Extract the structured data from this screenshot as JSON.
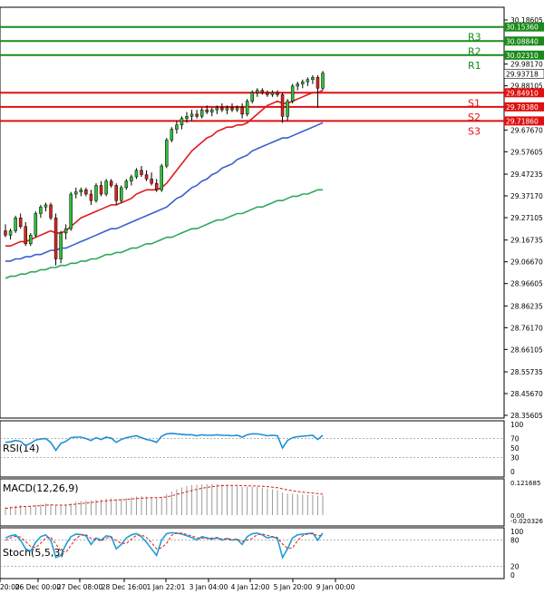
{
  "chart_data": {
    "type": "candlestick",
    "instrument_hint": "Silver-like price chart with support/resistance and indicators",
    "price_axis": {
      "min": 28.356,
      "max": 30.186,
      "ticks": [
        "30.18605",
        "29.98170",
        "29.88105",
        "29.67670",
        "29.57605",
        "29.47235",
        "29.37170",
        "29.27105",
        "29.16735",
        "29.06670",
        "28.96605",
        "28.86235",
        "28.76170",
        "28.66105",
        "28.55735",
        "28.45670",
        "28.35605"
      ]
    },
    "levels": [
      {
        "name": "R3",
        "value": 30.1536,
        "label": "30.15360",
        "color": "#1a8a1a"
      },
      {
        "name": "",
        "value": 30.0884,
        "label": "30.08840",
        "color": "#1a8a1a"
      },
      {
        "name": "R2",
        "value": 30.0884,
        "label": "",
        "color": "#1a8a1a"
      },
      {
        "name": "R1",
        "value": 30.0231,
        "label": "30.02310",
        "color": "#1a8a1a"
      },
      {
        "name": "S1",
        "value": 29.8491,
        "label": "29.84910",
        "color": "#e01010"
      },
      {
        "name": "S2",
        "value": 29.7838,
        "label": "29.78380",
        "color": "#e01010"
      },
      {
        "name": "S3",
        "value": 29.7186,
        "label": "29.71860",
        "color": "#e01010"
      }
    ],
    "current_price": {
      "value": 29.93718,
      "label": "29.93718"
    },
    "time_labels": [
      "20:00",
      "26 Dec 00:00",
      "27 Dec 08:00",
      "28 Dec 16:00",
      "1 Jan 22:01",
      "3 Jan 04:00",
      "4 Jan 12:00",
      "5 Jan 20:00",
      "9 Jan 00:00"
    ],
    "candles": [
      [
        29.21,
        29.24,
        29.18,
        29.19
      ],
      [
        29.19,
        29.22,
        29.17,
        29.21
      ],
      [
        29.21,
        29.28,
        29.2,
        29.27
      ],
      [
        29.27,
        29.29,
        29.22,
        29.23
      ],
      [
        29.23,
        29.25,
        29.14,
        29.15
      ],
      [
        29.15,
        29.2,
        29.14,
        29.19
      ],
      [
        29.19,
        29.3,
        29.18,
        29.29
      ],
      [
        29.29,
        29.33,
        29.27,
        29.32
      ],
      [
        29.32,
        29.34,
        29.3,
        29.33
      ],
      [
        29.33,
        29.34,
        29.26,
        29.27
      ],
      [
        29.27,
        29.29,
        29.05,
        29.08
      ],
      [
        29.08,
        29.21,
        29.06,
        29.2
      ],
      [
        29.2,
        29.24,
        29.17,
        29.22
      ],
      [
        29.22,
        29.39,
        29.21,
        29.38
      ],
      [
        29.38,
        29.41,
        29.36,
        29.39
      ],
      [
        29.39,
        29.41,
        29.37,
        29.4
      ],
      [
        29.4,
        29.41,
        29.37,
        29.38
      ],
      [
        29.38,
        29.4,
        29.33,
        29.35
      ],
      [
        29.35,
        29.43,
        29.34,
        29.42
      ],
      [
        29.42,
        29.44,
        29.37,
        29.38
      ],
      [
        29.38,
        29.45,
        29.37,
        29.44
      ],
      [
        29.44,
        29.45,
        29.41,
        29.42
      ],
      [
        29.42,
        29.43,
        29.33,
        29.35
      ],
      [
        29.35,
        29.42,
        29.34,
        29.41
      ],
      [
        29.41,
        29.45,
        29.4,
        29.44
      ],
      [
        29.44,
        29.47,
        29.42,
        29.46
      ],
      [
        29.46,
        29.5,
        29.45,
        29.49
      ],
      [
        29.49,
        29.51,
        29.46,
        29.47
      ],
      [
        29.47,
        29.49,
        29.44,
        29.45
      ],
      [
        29.45,
        29.48,
        29.42,
        29.43
      ],
      [
        29.43,
        29.45,
        29.39,
        29.4
      ],
      [
        29.4,
        29.52,
        29.39,
        29.51
      ],
      [
        29.51,
        29.64,
        29.5,
        29.63
      ],
      [
        29.63,
        29.69,
        29.62,
        29.68
      ],
      [
        29.68,
        29.72,
        29.66,
        29.7
      ],
      [
        29.7,
        29.74,
        29.68,
        29.73
      ],
      [
        29.73,
        29.76,
        29.71,
        29.74
      ],
      [
        29.74,
        29.77,
        29.72,
        29.75
      ],
      [
        29.75,
        29.77,
        29.73,
        29.74
      ],
      [
        29.74,
        29.78,
        29.73,
        29.77
      ],
      [
        29.77,
        29.79,
        29.75,
        29.76
      ],
      [
        29.76,
        29.78,
        29.74,
        29.77
      ],
      [
        29.77,
        29.79,
        29.75,
        29.78
      ],
      [
        29.78,
        29.8,
        29.76,
        29.77
      ],
      [
        29.77,
        29.79,
        29.75,
        29.78
      ],
      [
        29.78,
        29.8,
        29.76,
        29.77
      ],
      [
        29.77,
        29.79,
        29.76,
        29.78
      ],
      [
        29.78,
        29.8,
        29.73,
        29.75
      ],
      [
        29.75,
        29.82,
        29.74,
        29.81
      ],
      [
        29.81,
        29.86,
        29.8,
        29.85
      ],
      [
        29.85,
        29.87,
        29.83,
        29.86
      ],
      [
        29.86,
        29.87,
        29.84,
        29.85
      ],
      [
        29.85,
        29.86,
        29.83,
        29.84
      ],
      [
        29.84,
        29.86,
        29.83,
        29.85
      ],
      [
        29.85,
        29.86,
        29.83,
        29.84
      ],
      [
        29.84,
        29.85,
        29.71,
        29.74
      ],
      [
        29.74,
        29.82,
        29.72,
        29.81
      ],
      [
        29.81,
        29.89,
        29.8,
        29.88
      ],
      [
        29.88,
        29.9,
        29.86,
        29.89
      ],
      [
        29.89,
        29.91,
        29.87,
        29.9
      ],
      [
        29.9,
        29.92,
        29.88,
        29.91
      ],
      [
        29.91,
        29.93,
        29.89,
        29.92
      ],
      [
        29.92,
        29.93,
        29.78,
        29.87
      ],
      [
        29.87,
        29.95,
        29.86,
        29.94
      ]
    ],
    "ma_red": [
      29.14,
      29.14,
      29.15,
      29.16,
      29.16,
      29.17,
      29.18,
      29.19,
      29.2,
      29.21,
      29.2,
      29.2,
      29.21,
      29.23,
      29.25,
      29.27,
      29.28,
      29.29,
      29.3,
      29.31,
      29.32,
      29.33,
      29.33,
      29.34,
      29.35,
      29.36,
      29.38,
      29.39,
      29.4,
      29.4,
      29.4,
      29.41,
      29.43,
      29.46,
      29.49,
      29.52,
      29.55,
      29.58,
      29.6,
      29.62,
      29.64,
      29.65,
      29.67,
      29.68,
      29.69,
      29.69,
      29.7,
      29.7,
      29.71,
      29.73,
      29.75,
      29.77,
      29.79,
      29.8,
      29.81,
      29.8,
      29.8,
      29.81,
      29.82,
      29.83,
      29.84,
      29.85,
      29.85,
      29.86
    ],
    "ma_blue": [
      29.07,
      29.07,
      29.08,
      29.08,
      29.09,
      29.09,
      29.1,
      29.1,
      29.11,
      29.12,
      29.12,
      29.13,
      29.13,
      29.14,
      29.15,
      29.16,
      29.17,
      29.18,
      29.19,
      29.2,
      29.21,
      29.22,
      29.22,
      29.23,
      29.24,
      29.25,
      29.26,
      29.27,
      29.28,
      29.29,
      29.3,
      29.31,
      29.32,
      29.34,
      29.36,
      29.37,
      29.39,
      29.41,
      29.42,
      29.44,
      29.45,
      29.47,
      29.48,
      29.5,
      29.51,
      29.52,
      29.54,
      29.55,
      29.56,
      29.58,
      29.59,
      29.6,
      29.61,
      29.62,
      29.63,
      29.64,
      29.64,
      29.65,
      29.66,
      29.67,
      29.68,
      29.69,
      29.7,
      29.71
    ],
    "ma_green": [
      28.99,
      29.0,
      29.0,
      29.01,
      29.01,
      29.02,
      29.02,
      29.03,
      29.03,
      29.04,
      29.04,
      29.05,
      29.05,
      29.06,
      29.06,
      29.07,
      29.07,
      29.08,
      29.08,
      29.09,
      29.1,
      29.1,
      29.11,
      29.11,
      29.12,
      29.13,
      29.13,
      29.14,
      29.15,
      29.15,
      29.16,
      29.17,
      29.18,
      29.18,
      29.19,
      29.2,
      29.21,
      29.22,
      29.22,
      29.23,
      29.24,
      29.25,
      29.26,
      29.26,
      29.27,
      29.28,
      29.29,
      29.29,
      29.3,
      29.31,
      29.32,
      29.32,
      29.33,
      29.34,
      29.35,
      29.35,
      29.36,
      29.37,
      29.37,
      29.38,
      29.38,
      29.39,
      29.4,
      29.4
    ],
    "rsi": {
      "title": "RSI(14)",
      "ticks": [
        "100",
        "70",
        "50",
        "30",
        "0"
      ],
      "levels": [
        70,
        30
      ],
      "values": [
        62,
        63,
        66,
        64,
        55,
        60,
        67,
        69,
        70,
        62,
        45,
        60,
        64,
        72,
        73,
        73,
        70,
        66,
        72,
        68,
        73,
        71,
        62,
        68,
        72,
        74,
        76,
        72,
        68,
        66,
        62,
        75,
        80,
        81,
        80,
        79,
        78,
        78,
        76,
        78,
        77,
        77,
        78,
        77,
        77,
        76,
        77,
        73,
        78,
        80,
        80,
        78,
        76,
        77,
        76,
        50,
        66,
        72,
        74,
        75,
        76,
        77,
        68,
        77
      ]
    },
    "macd": {
      "title": "MACD(12,26,9)",
      "ticks": [
        "0.121685",
        "0.00",
        "-0.020326"
      ],
      "histogram": [
        0.03,
        0.032,
        0.035,
        0.036,
        0.034,
        0.034,
        0.037,
        0.04,
        0.043,
        0.042,
        0.035,
        0.036,
        0.038,
        0.044,
        0.049,
        0.052,
        0.054,
        0.054,
        0.057,
        0.058,
        0.061,
        0.062,
        0.06,
        0.061,
        0.063,
        0.066,
        0.069,
        0.07,
        0.069,
        0.067,
        0.064,
        0.069,
        0.078,
        0.088,
        0.096,
        0.103,
        0.108,
        0.112,
        0.113,
        0.115,
        0.116,
        0.116,
        0.116,
        0.115,
        0.113,
        0.111,
        0.109,
        0.105,
        0.105,
        0.106,
        0.105,
        0.102,
        0.099,
        0.096,
        0.093,
        0.084,
        0.08,
        0.079,
        0.078,
        0.077,
        0.076,
        0.075,
        0.072,
        0.073
      ],
      "signal": [
        0.025,
        0.027,
        0.029,
        0.031,
        0.032,
        0.033,
        0.034,
        0.035,
        0.037,
        0.038,
        0.037,
        0.037,
        0.037,
        0.039,
        0.041,
        0.043,
        0.045,
        0.047,
        0.049,
        0.051,
        0.053,
        0.055,
        0.056,
        0.057,
        0.058,
        0.06,
        0.062,
        0.063,
        0.064,
        0.065,
        0.065,
        0.066,
        0.068,
        0.072,
        0.077,
        0.082,
        0.087,
        0.092,
        0.096,
        0.1,
        0.103,
        0.106,
        0.108,
        0.11,
        0.111,
        0.111,
        0.111,
        0.11,
        0.109,
        0.109,
        0.108,
        0.107,
        0.106,
        0.104,
        0.102,
        0.098,
        0.094,
        0.091,
        0.088,
        0.086,
        0.084,
        0.082,
        0.08,
        0.078
      ]
    },
    "stoch": {
      "title": "Stoch(5,5,3)",
      "ticks": [
        "100",
        "80",
        "20",
        "0"
      ],
      "levels": [
        80,
        20
      ],
      "k": [
        85,
        90,
        92,
        80,
        60,
        55,
        75,
        88,
        92,
        80,
        40,
        45,
        70,
        88,
        94,
        93,
        90,
        70,
        85,
        80,
        90,
        88,
        60,
        70,
        85,
        92,
        95,
        88,
        75,
        60,
        45,
        80,
        95,
        97,
        96,
        94,
        90,
        86,
        80,
        88,
        85,
        82,
        86,
        80,
        84,
        80,
        82,
        70,
        88,
        95,
        96,
        92,
        85,
        88,
        84,
        40,
        60,
        85,
        92,
        94,
        95,
        96,
        80,
        96
      ],
      "d": [
        80,
        85,
        89,
        87,
        77,
        65,
        63,
        73,
        85,
        87,
        71,
        55,
        52,
        68,
        84,
        92,
        92,
        84,
        82,
        78,
        85,
        86,
        79,
        73,
        72,
        82,
        91,
        92,
        86,
        74,
        60,
        62,
        73,
        91,
        96,
        96,
        93,
        90,
        85,
        85,
        84,
        85,
        84,
        83,
        83,
        81,
        82,
        77,
        80,
        84,
        93,
        94,
        91,
        88,
        86,
        71,
        61,
        62,
        79,
        90,
        94,
        95,
        90,
        91
      ]
    }
  }
}
